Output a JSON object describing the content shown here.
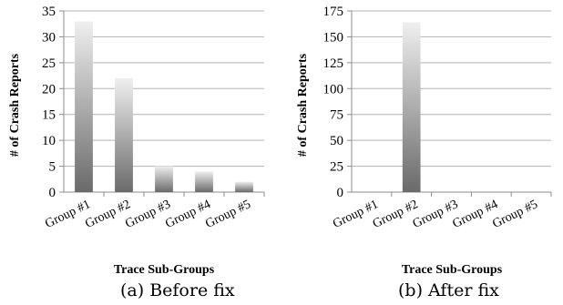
{
  "chart_data": [
    {
      "type": "bar",
      "categories": [
        "Group #1",
        "Group #2",
        "Group #3",
        "Group #4",
        "Group #5"
      ],
      "values": [
        33,
        22,
        5,
        4,
        2
      ],
      "ylim": [
        0,
        35
      ],
      "yticks": [
        0,
        5,
        10,
        15,
        20,
        25,
        30,
        35
      ],
      "xlabel": "Trace Sub-Groups",
      "ylabel": "# of Crash Reports",
      "caption": "(a) Before fix",
      "grid": true
    },
    {
      "type": "bar",
      "categories": [
        "Group #1",
        "Group #2",
        "Group #3",
        "Group #4",
        "Group #5"
      ],
      "values": [
        0,
        164,
        0,
        0,
        0
      ],
      "ylim": [
        0,
        175
      ],
      "yticks": [
        0,
        25,
        50,
        75,
        100,
        125,
        150,
        175
      ],
      "xlabel": "Trace Sub-Groups",
      "ylabel": "# of Crash Reports",
      "caption": "(b) After fix",
      "grid": true
    }
  ],
  "colors": {
    "bar_top": "#efefef",
    "bar_bottom": "#6a6a6a",
    "grid": "#b3b3b3",
    "axis": "#8c8c8c"
  }
}
